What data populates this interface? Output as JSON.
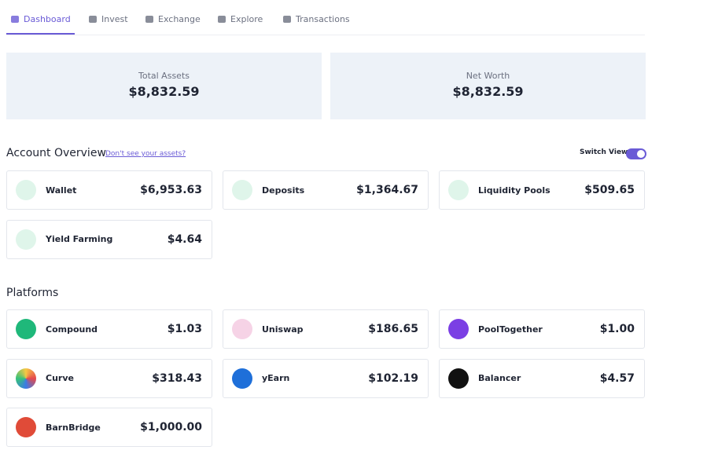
{
  "nav": {
    "tabs": [
      "Dashboard",
      "Invest",
      "Exchange",
      "Explore",
      "Transactions"
    ]
  },
  "summary": [
    {
      "label": "Total Assets",
      "value": "$8,832.59"
    },
    {
      "label": "Net Worth",
      "value": "$8,832.59"
    }
  ],
  "account_overview": {
    "title": "Account Overview",
    "link": "Don't see your assets?",
    "switch_label": "Switch View",
    "items": [
      {
        "name": "Wallet",
        "value": "$6,953.63"
      },
      {
        "name": "Deposits",
        "value": "$1,364.67"
      },
      {
        "name": "Liquidity Pools",
        "value": "$509.65"
      },
      {
        "name": "Yield Farming",
        "value": "$4.64"
      }
    ]
  },
  "platforms": {
    "title": "Platforms",
    "items": [
      {
        "name": "Compound",
        "value": "$1.03"
      },
      {
        "name": "Uniswap",
        "value": "$186.65"
      },
      {
        "name": "PoolTogether",
        "value": "$1.00"
      },
      {
        "name": "Curve",
        "value": "$318.43"
      },
      {
        "name": "yEarn",
        "value": "$102.19"
      },
      {
        "name": "Balancer",
        "value": "$4.57"
      },
      {
        "name": "BarnBridge",
        "value": "$1,000.00"
      }
    ]
  }
}
